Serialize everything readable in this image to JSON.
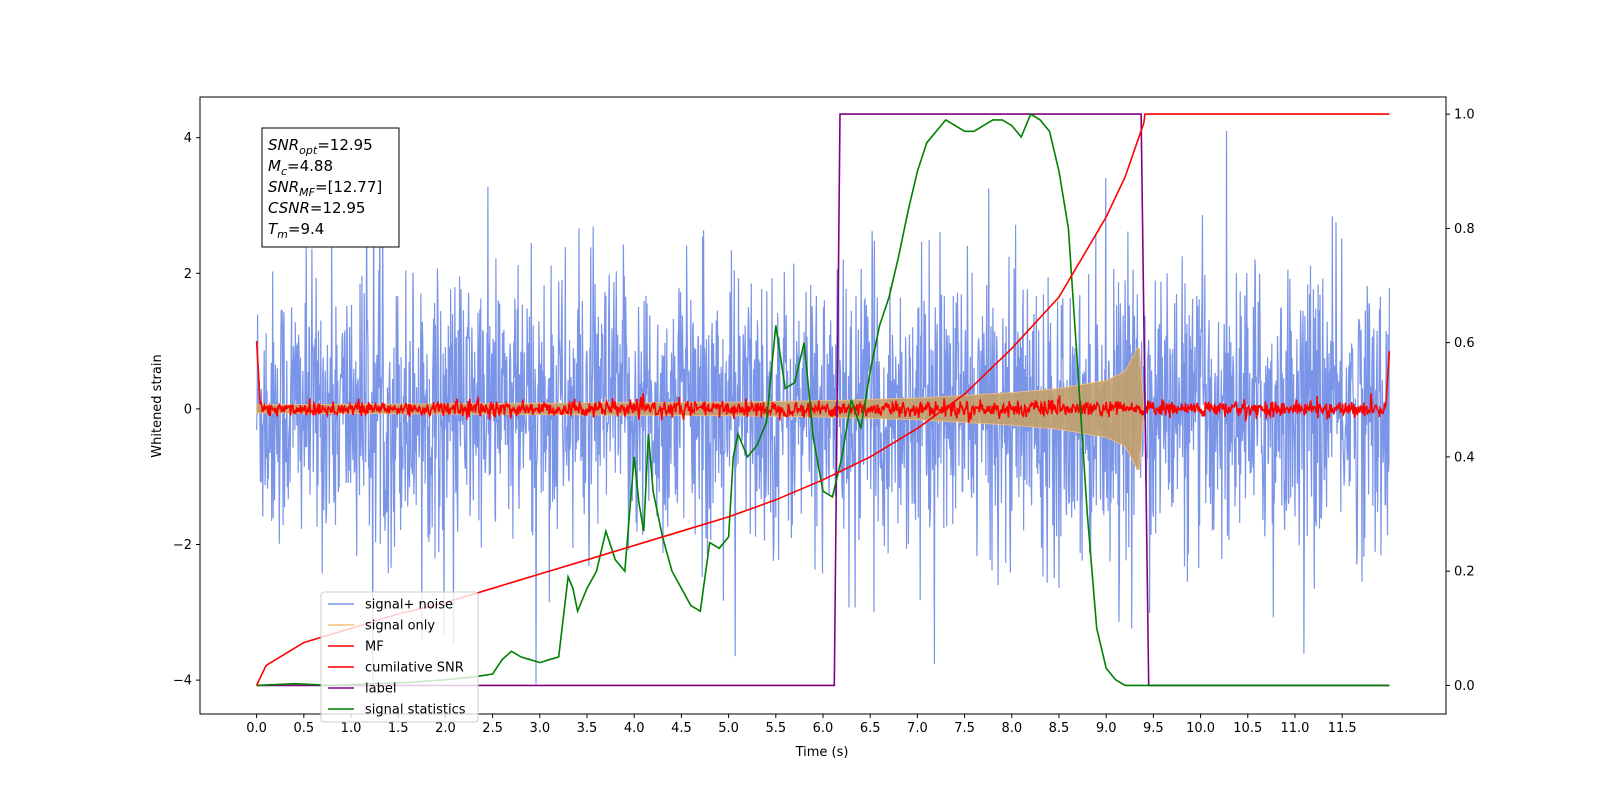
{
  "chart_data": {
    "type": "line",
    "xlabel": "Time (s)",
    "ylabel": "Whitened strain",
    "xlim": [
      -0.6,
      12.6
    ],
    "ylim": [
      -4.5,
      4.6
    ],
    "y2lim": [
      -0.05,
      1.03
    ],
    "x_ticks": [
      "0.0",
      "0.5",
      "1.0",
      "1.5",
      "2.0",
      "2.5",
      "3.0",
      "3.5",
      "4.0",
      "4.5",
      "5.0",
      "5.5",
      "6.0",
      "6.5",
      "7.0",
      "7.5",
      "8.0",
      "8.5",
      "9.0",
      "9.5",
      "10.0",
      "10.5",
      "11.0",
      "11.5"
    ],
    "y_ticks": [
      "4",
      "2",
      "0",
      "−2",
      "−4"
    ],
    "y2_ticks": [
      "1.0",
      "0.8",
      "0.6",
      "0.4",
      "0.2",
      "0.0"
    ],
    "grid": false,
    "legend_position": "lower-left",
    "annotation": [
      {
        "base": "SNR",
        "sub": "opt",
        "value": "=12.95"
      },
      {
        "base": "M",
        "sub": "c",
        "value": "=4.88"
      },
      {
        "base": "SNR",
        "sub": "MF",
        "value": "=[12.77]"
      },
      {
        "base": "CSNR",
        "sub": "",
        "value": "=12.95"
      },
      {
        "base": "T",
        "sub": "m",
        "value": "=9.4"
      }
    ],
    "series": [
      {
        "name": "signal+ noise",
        "color": "#7a94e8",
        "axis": "left",
        "kind": "noise",
        "description": "whitened noise with unit variance, approx range -4 to 4, t=0..12"
      },
      {
        "name": "signal only",
        "color": "#f5c07a",
        "axis": "left",
        "kind": "chirp",
        "envelope_t": [
          0,
          5,
          6,
          7,
          8,
          8.5,
          9.0,
          9.2,
          9.35,
          9.4
        ],
        "envelope_a": [
          0.06,
          0.1,
          0.12,
          0.16,
          0.24,
          0.3,
          0.42,
          0.55,
          0.95,
          0.0
        ]
      },
      {
        "name": "MF",
        "color": "#ff0000",
        "axis": "left",
        "kind": "mf",
        "description": "matched filter output, roughly 0 with spread ±0.15, spikes to 1.0 and 0.85 at edges"
      },
      {
        "name": "cumilative SNR",
        "color": "#ff0000",
        "axis": "right",
        "t": [
          0,
          0.1,
          0.5,
          1.0,
          1.5,
          2.0,
          2.5,
          3.0,
          3.5,
          4.0,
          4.5,
          5.0,
          5.5,
          6.0,
          6.5,
          7.0,
          7.5,
          8.0,
          8.5,
          9.0,
          9.2,
          9.4,
          9.41,
          12.0
        ],
        "v": [
          0.0,
          0.035,
          0.075,
          0.1,
          0.125,
          0.145,
          0.17,
          0.195,
          0.22,
          0.245,
          0.27,
          0.295,
          0.325,
          0.36,
          0.4,
          0.45,
          0.51,
          0.59,
          0.68,
          0.82,
          0.89,
          0.985,
          1.0,
          1.0
        ]
      },
      {
        "name": "label",
        "color": "#800080",
        "axis": "right",
        "t": [
          0,
          6.12,
          6.18,
          9.37,
          9.45,
          12.0
        ],
        "v": [
          0,
          0,
          1,
          1,
          0,
          0
        ]
      },
      {
        "name": "signal statistics",
        "color": "#008000",
        "axis": "right",
        "t": [
          0,
          0.4,
          0.8,
          1.2,
          1.6,
          2.0,
          2.3,
          2.5,
          2.6,
          2.7,
          2.8,
          2.9,
          3.0,
          3.1,
          3.2,
          3.3,
          3.35,
          3.4,
          3.5,
          3.6,
          3.7,
          3.8,
          3.9,
          4.0,
          4.05,
          4.1,
          4.15,
          4.2,
          4.3,
          4.4,
          4.5,
          4.6,
          4.7,
          4.8,
          4.9,
          5.0,
          5.05,
          5.1,
          5.2,
          5.3,
          5.4,
          5.5,
          5.6,
          5.7,
          5.8,
          5.9,
          6.0,
          6.1,
          6.2,
          6.3,
          6.4,
          6.5,
          6.6,
          6.7,
          6.8,
          6.9,
          7.0,
          7.1,
          7.2,
          7.3,
          7.4,
          7.5,
          7.6,
          7.7,
          7.8,
          7.9,
          8.0,
          8.1,
          8.2,
          8.3,
          8.4,
          8.5,
          8.6,
          8.7,
          8.8,
          8.9,
          9.0,
          9.1,
          9.2,
          9.4,
          9.6,
          12.0
        ],
        "v": [
          0.0,
          0.003,
          0.0,
          0.003,
          0.005,
          0.01,
          0.015,
          0.02,
          0.045,
          0.06,
          0.05,
          0.045,
          0.04,
          0.045,
          0.05,
          0.19,
          0.17,
          0.13,
          0.17,
          0.2,
          0.27,
          0.22,
          0.2,
          0.4,
          0.32,
          0.27,
          0.44,
          0.34,
          0.26,
          0.2,
          0.17,
          0.14,
          0.13,
          0.25,
          0.24,
          0.26,
          0.4,
          0.44,
          0.4,
          0.42,
          0.46,
          0.63,
          0.52,
          0.53,
          0.6,
          0.43,
          0.34,
          0.33,
          0.4,
          0.5,
          0.45,
          0.55,
          0.63,
          0.68,
          0.75,
          0.83,
          0.9,
          0.95,
          0.97,
          0.99,
          0.98,
          0.97,
          0.97,
          0.98,
          0.99,
          0.99,
          0.98,
          0.96,
          1.0,
          0.99,
          0.97,
          0.9,
          0.8,
          0.55,
          0.3,
          0.1,
          0.03,
          0.01,
          0.0,
          0.0,
          0.0,
          0.0
        ]
      }
    ]
  }
}
